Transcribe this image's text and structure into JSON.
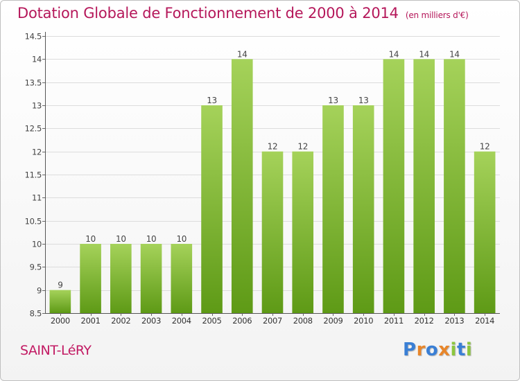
{
  "header": {
    "title": "Dotation Globale de Fonctionnement de 2000 à 2014",
    "unit": "(en milliers d'€)"
  },
  "footer": {
    "place": "SAINT-LéRY",
    "logo": "Proxiti"
  },
  "colors": {
    "title": "#b5175a",
    "bar_top": "#a5d25a",
    "bar_bottom": "#5e9a16",
    "grid": "#dcdcdc",
    "logo_letters": [
      "#3a7fd5",
      "#e8862a",
      "#3a7fd5",
      "#e8862a",
      "#8cc63f",
      "#3a7fd5",
      "#8cc63f"
    ]
  },
  "chart_data": {
    "type": "bar",
    "title": "Dotation Globale de Fonctionnement de 2000 à 2014",
    "subtitle": "(en milliers d'€)",
    "xlabel": "",
    "ylabel": "",
    "categories": [
      "2000",
      "2001",
      "2002",
      "2003",
      "2004",
      "2005",
      "2006",
      "2007",
      "2008",
      "2009",
      "2010",
      "2011",
      "2012",
      "2013",
      "2014"
    ],
    "values": [
      9,
      10,
      10,
      10,
      10,
      13,
      14,
      12,
      12,
      13,
      13,
      14,
      14,
      14,
      12
    ],
    "data_labels": [
      "9",
      "10",
      "10",
      "10",
      "10",
      "13",
      "14",
      "12",
      "12",
      "13",
      "13",
      "14",
      "14",
      "14",
      "12"
    ],
    "ylim": [
      8.5,
      14.5
    ],
    "yticks": [
      8.5,
      9,
      9.5,
      10,
      10.5,
      11,
      11.5,
      12,
      12.5,
      13,
      13.5,
      14,
      14.5
    ],
    "ytick_labels": [
      "8.5",
      "9",
      "9.5",
      "10",
      "10.5",
      "11",
      "11.5",
      "12",
      "12.5",
      "13",
      "13.5",
      "14",
      "14.5"
    ],
    "grid": true,
    "legend": "none"
  }
}
